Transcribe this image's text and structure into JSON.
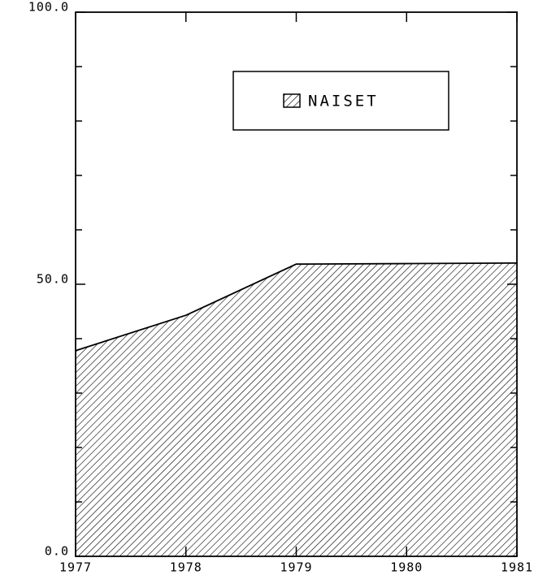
{
  "chart_data": {
    "type": "area",
    "x": [
      1977,
      1978,
      1979,
      1980,
      1981
    ],
    "series": [
      {
        "name": "NAISET",
        "color": "#000000",
        "values": [
          37.8,
          44.3,
          53.7,
          53.8,
          53.9
        ]
      }
    ],
    "xlim": [
      1977,
      1981
    ],
    "xticks": [
      1977,
      1978,
      1979,
      1980,
      1981
    ],
    "ylim": [
      0,
      100
    ],
    "yticks": [
      {
        "value": 0,
        "label": "0.0"
      },
      {
        "value": 50,
        "label": "50.0"
      },
      {
        "value": 100,
        "label": "100.0"
      }
    ],
    "yminorticks": [
      10,
      20,
      30,
      40,
      60,
      70,
      80,
      90
    ],
    "legend": "upper right"
  }
}
